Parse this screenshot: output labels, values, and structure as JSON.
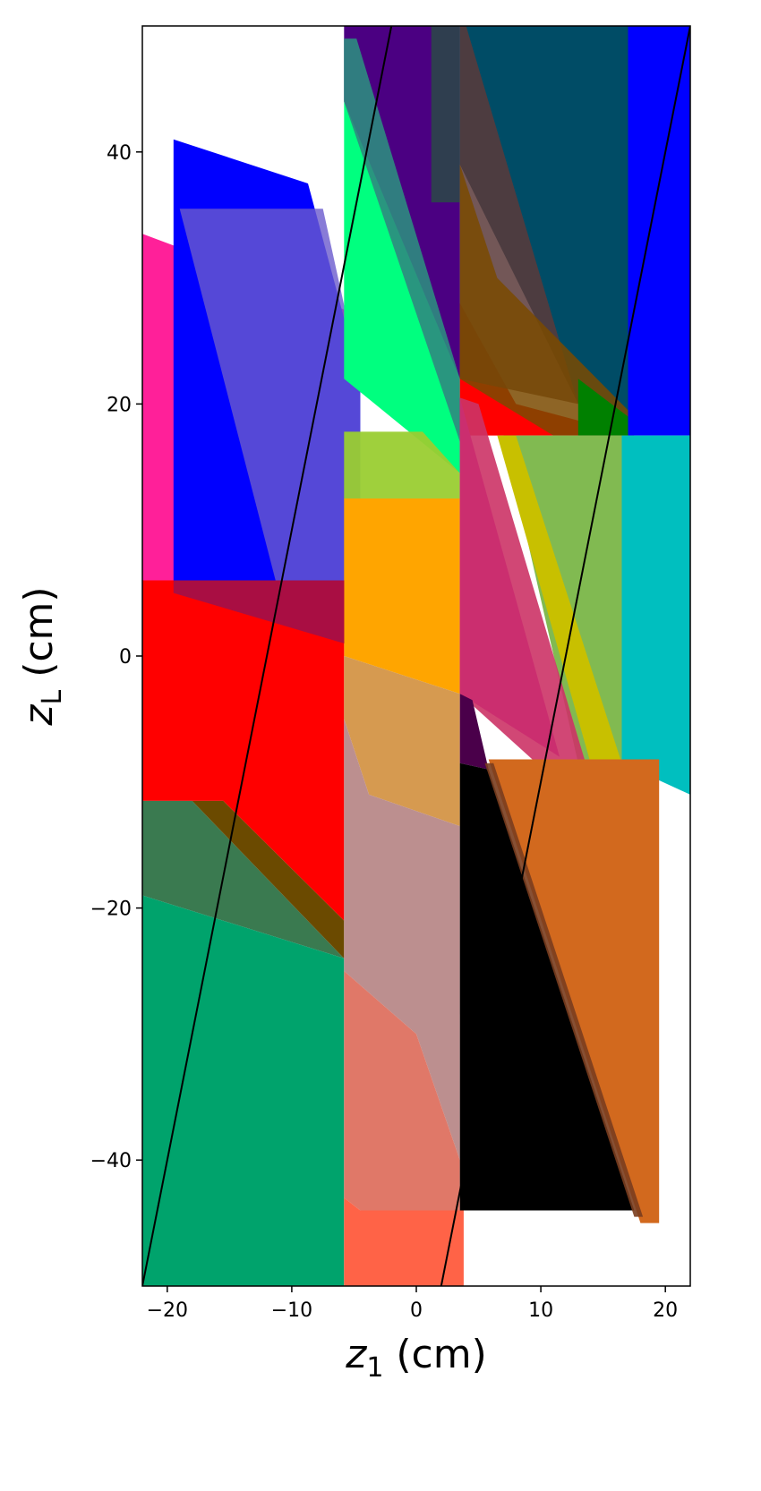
{
  "chart_data": {
    "type": "area",
    "xlabel": "z",
    "xlabel_sub": "1",
    "xlabel_unit": " (cm)",
    "ylabel": "z",
    "ylabel_sub": "L",
    "ylabel_unit": " (cm)",
    "xlim": [
      -22,
      22
    ],
    "ylim": [
      -50,
      50
    ],
    "xticks": [
      -20,
      -10,
      0,
      10,
      20
    ],
    "yticks": [
      -40,
      -20,
      0,
      20,
      40
    ],
    "grid": false,
    "regions": [
      {
        "color": "#ff1493",
        "alpha": 0.95,
        "points": [
          [
            -22,
            33.5
          ],
          [
            -5.8,
            27.5
          ],
          [
            -5.8,
            5
          ],
          [
            -22,
            5
          ]
        ]
      },
      {
        "color": "#0000ff",
        "alpha": 1,
        "points": [
          [
            -19.5,
            41
          ],
          [
            -8.7,
            37.5
          ],
          [
            -4.5,
            22
          ],
          [
            -4.5,
            1
          ],
          [
            -19.5,
            1
          ]
        ]
      },
      {
        "color": "#6a5acd",
        "alpha": 0.8,
        "points": [
          [
            -19,
            35.5
          ],
          [
            -7.5,
            35.5
          ],
          [
            -4.5,
            22
          ],
          [
            -4.5,
            1
          ],
          [
            -10,
            1
          ]
        ]
      },
      {
        "color": "#00ff7f",
        "alpha": 1,
        "points": [
          [
            -5.8,
            49
          ],
          [
            -4.8,
            49
          ],
          [
            3.5,
            22
          ],
          [
            3.5,
            14.5
          ],
          [
            -5.8,
            22
          ]
        ]
      },
      {
        "color": "#4b0082",
        "alpha": 1,
        "points": [
          [
            -5.8,
            50
          ],
          [
            3.5,
            50
          ],
          [
            3.5,
            22
          ],
          [
            -5.8,
            44
          ]
        ]
      },
      {
        "color": "#2e8b7f",
        "alpha": 0.9,
        "points": [
          [
            -5.8,
            44
          ],
          [
            -5.8,
            49
          ],
          [
            -4.8,
            49
          ],
          [
            3.5,
            22
          ],
          [
            3.5,
            17
          ]
        ]
      },
      {
        "color": "#ff0000",
        "alpha": 1,
        "points": [
          [
            3.5,
            28
          ],
          [
            8,
            20
          ],
          [
            17.5,
            17.5
          ],
          [
            3.5,
            17.5
          ]
        ]
      },
      {
        "color": "#2f3e4f",
        "alpha": 1,
        "points": [
          [
            1.2,
            50
          ],
          [
            3.5,
            50
          ],
          [
            3.5,
            36
          ],
          [
            1.2,
            36
          ]
        ]
      },
      {
        "color": "#004c66",
        "alpha": 1,
        "points": [
          [
            3.5,
            50
          ],
          [
            17,
            50
          ],
          [
            17,
            17.5
          ],
          [
            13,
            20
          ],
          [
            3.5,
            39
          ]
        ]
      },
      {
        "color": "#5a3a3a",
        "alpha": 0.85,
        "points": [
          [
            3.5,
            50
          ],
          [
            4,
            50
          ],
          [
            13,
            20
          ],
          [
            3.5,
            22
          ]
        ]
      },
      {
        "color": "#7a4a00",
        "alpha": 0.85,
        "points": [
          [
            3.5,
            39
          ],
          [
            6.5,
            30
          ],
          [
            17,
            19.5
          ],
          [
            17,
            17.5
          ],
          [
            11,
            17.5
          ],
          [
            3.5,
            22
          ]
        ]
      },
      {
        "color": "#008000",
        "alpha": 1,
        "points": [
          [
            13,
            22
          ],
          [
            17,
            19
          ],
          [
            17.5,
            17.5
          ],
          [
            13,
            17.5
          ]
        ]
      },
      {
        "color": "#0000ff",
        "alpha": 1,
        "points": [
          [
            17,
            50
          ],
          [
            22,
            50
          ],
          [
            22,
            17.5
          ],
          [
            17,
            17.5
          ]
        ]
      },
      {
        "color": "#00bfbf",
        "alpha": 1,
        "points": [
          [
            16.5,
            17.5
          ],
          [
            22,
            17.5
          ],
          [
            22,
            -11
          ],
          [
            16.5,
            -8.5
          ]
        ]
      },
      {
        "color": "#9acd32",
        "alpha": 0.95,
        "points": [
          [
            -5.8,
            17.8
          ],
          [
            0.5,
            17.8
          ],
          [
            3.5,
            14.5
          ],
          [
            3.5,
            12.5
          ],
          [
            -5.8,
            12.5
          ]
        ]
      },
      {
        "color": "#ffa500",
        "alpha": 1,
        "points": [
          [
            -5.8,
            12.5
          ],
          [
            3.5,
            12.5
          ],
          [
            3.5,
            -3
          ],
          [
            -5.8,
            0
          ]
        ]
      },
      {
        "color": "#7ab648",
        "alpha": 0.95,
        "points": [
          [
            7,
            17.5
          ],
          [
            16.5,
            17.5
          ],
          [
            16.5,
            -8.5
          ],
          [
            13,
            -8.5
          ]
        ]
      },
      {
        "color": "#c000c0",
        "alpha": 1,
        "points": [
          [
            3.5,
            20.5
          ],
          [
            11.5,
            -8
          ],
          [
            3.5,
            -3
          ]
        ]
      },
      {
        "color": "#c8c000",
        "alpha": 1,
        "points": [
          [
            6.5,
            17.5
          ],
          [
            8,
            17.5
          ],
          [
            16.5,
            -8.5
          ],
          [
            14,
            -8.5
          ]
        ]
      },
      {
        "color": "#cc3366",
        "alpha": 0.9,
        "points": [
          [
            3.5,
            20.5
          ],
          [
            5,
            20
          ],
          [
            14.5,
            -11.5
          ],
          [
            13,
            -11.5
          ],
          [
            3.5,
            -3
          ]
        ]
      },
      {
        "color": "#ff0000",
        "alpha": 1,
        "points": [
          [
            -22,
            6
          ],
          [
            -5.8,
            6
          ],
          [
            -5.8,
            -21
          ],
          [
            -15.5,
            -11.5
          ],
          [
            -22,
            -11.5
          ]
        ]
      },
      {
        "color": "#a0104a",
        "alpha": 0.9,
        "points": [
          [
            -19.5,
            6
          ],
          [
            -5.8,
            6
          ],
          [
            -5.8,
            1
          ],
          [
            -19.5,
            5
          ]
        ]
      },
      {
        "color": "#3a7a50",
        "alpha": 1,
        "points": [
          [
            -22,
            -11.5
          ],
          [
            -18,
            -11.5
          ],
          [
            -5.8,
            -24
          ],
          [
            -22,
            -19
          ]
        ]
      },
      {
        "color": "#6b4a00",
        "alpha": 1,
        "points": [
          [
            -18,
            -11.5
          ],
          [
            -15.5,
            -11.5
          ],
          [
            -5.8,
            -21
          ],
          [
            -5.8,
            -24
          ]
        ]
      },
      {
        "color": "#00a36c",
        "alpha": 1,
        "points": [
          [
            -22,
            -19
          ],
          [
            -5.8,
            -24
          ],
          [
            -5.8,
            -50
          ],
          [
            -22,
            -50
          ]
        ]
      },
      {
        "color": "#d69a50",
        "alpha": 1,
        "points": [
          [
            -5.8,
            0
          ],
          [
            3.5,
            -3
          ],
          [
            3.5,
            -13.5
          ],
          [
            -3.8,
            -11
          ],
          [
            -5.8,
            -5
          ]
        ]
      },
      {
        "color": "#bc8f8f",
        "alpha": 1,
        "points": [
          [
            -5.8,
            -5
          ],
          [
            -3.8,
            -11
          ],
          [
            3.5,
            -13.5
          ],
          [
            3.5,
            -40
          ],
          [
            0,
            -30
          ],
          [
            -5.8,
            -25
          ]
        ]
      },
      {
        "color": "#e07868",
        "alpha": 1,
        "points": [
          [
            -5.8,
            -25
          ],
          [
            0,
            -30
          ],
          [
            3.5,
            -40
          ],
          [
            3.5,
            -44
          ],
          [
            -4.5,
            -44
          ],
          [
            -5.8,
            -43
          ]
        ]
      },
      {
        "color": "#ff6347",
        "alpha": 1,
        "points": [
          [
            -5.8,
            -43
          ],
          [
            -4.5,
            -44
          ],
          [
            3.8,
            -44
          ],
          [
            3.8,
            -50
          ],
          [
            -5.8,
            -50
          ]
        ]
      },
      {
        "color": "#4a004a",
        "alpha": 1,
        "points": [
          [
            3.5,
            -3
          ],
          [
            4.5,
            -3.5
          ],
          [
            5.8,
            -9
          ],
          [
            3.5,
            -8.5
          ]
        ]
      },
      {
        "color": "#000000",
        "alpha": 1,
        "points": [
          [
            3.5,
            -8.5
          ],
          [
            5.8,
            -9
          ],
          [
            17.5,
            -44
          ],
          [
            3.5,
            -44
          ]
        ]
      },
      {
        "color": "#d2691e",
        "alpha": 1,
        "points": [
          [
            5.8,
            -8.2
          ],
          [
            19.5,
            -8.2
          ],
          [
            19.5,
            -45
          ],
          [
            18,
            -45
          ]
        ]
      },
      {
        "color": "#7a3d1e",
        "alpha": 0.9,
        "points": [
          [
            5.5,
            -8.5
          ],
          [
            6.2,
            -8.5
          ],
          [
            18.2,
            -44.5
          ],
          [
            17.5,
            -44.5
          ]
        ]
      }
    ],
    "lines": [
      {
        "color": "#000000",
        "points": [
          [
            -22,
            -50
          ],
          [
            -2,
            50
          ]
        ]
      },
      {
        "color": "#000000",
        "points": [
          [
            2,
            -50
          ],
          [
            22,
            50
          ]
        ]
      }
    ]
  }
}
